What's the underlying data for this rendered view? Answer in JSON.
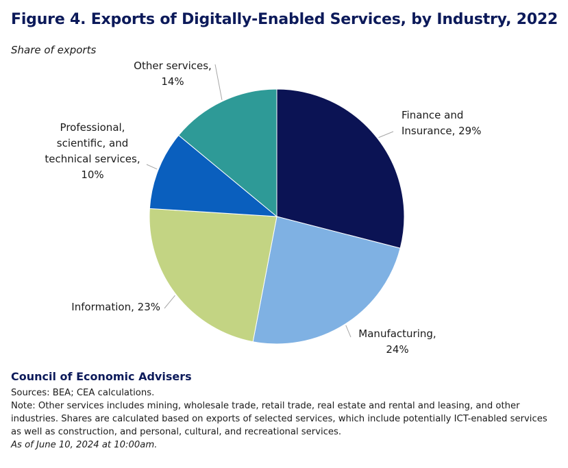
{
  "title": "Figure 4. Exports of Digitally-Enabled Services, by Industry, 2022",
  "subtitle": "Share of exports",
  "chart_data": {
    "type": "pie",
    "title": "Figure 4. Exports of Digitally-Enabled Services, by Industry, 2022",
    "subtitle": "Share of exports",
    "categories": [
      "Finance and Insurance",
      "Manufacturing",
      "Information",
      "Professional, scientific, and technical services",
      "Other services"
    ],
    "values": [
      29,
      24,
      23,
      10,
      14
    ],
    "unit": "%",
    "colors": [
      "#0b1354",
      "#7fb1e3",
      "#c3d483",
      "#0a5fbe",
      "#2e9a97"
    ],
    "labels": [
      [
        "Finance and",
        "Insurance, 29%"
      ],
      [
        "Manufacturing,",
        "24%"
      ],
      [
        "Information, 23%"
      ],
      [
        "Professional,",
        "scientific, and",
        "technical services,",
        "10%"
      ],
      [
        "Other services,",
        "14%"
      ]
    ]
  },
  "footer": {
    "org": "Council of Economic Advisers",
    "sources": "Sources: BEA; CEA calculations.",
    "note": "Note: Other services includes mining, wholesale trade, retail trade, real estate and rental and leasing, and other industries. Shares are calculated based on exports of selected services, which include potentially ICT-enabled services as well as construction, and personal, cultural, and recreational services.",
    "as_of": "As of June 10, 2024 at 10:00am."
  }
}
